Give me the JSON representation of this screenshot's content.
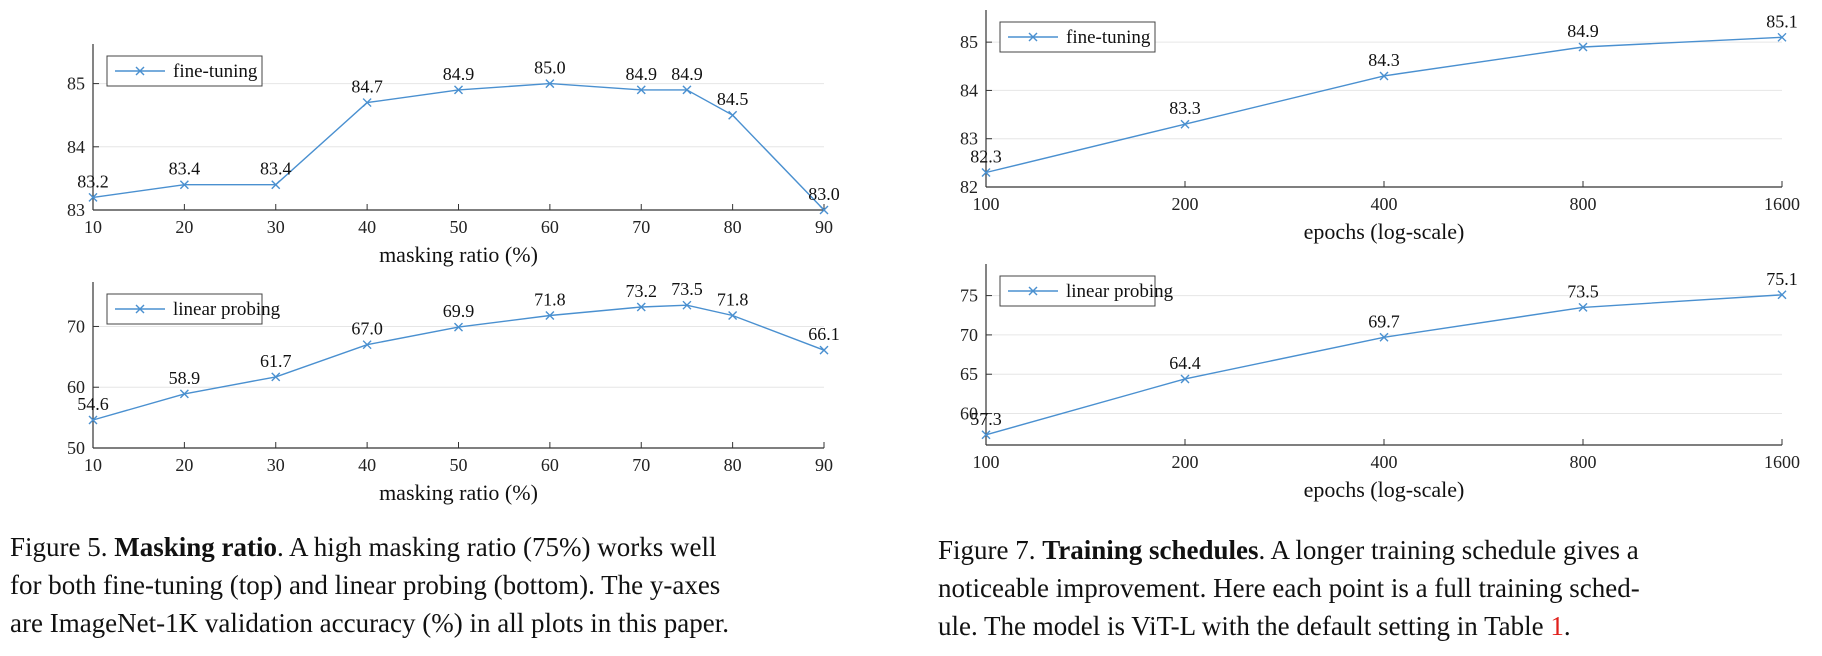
{
  "chart_data": [
    {
      "id": "fig5_top",
      "type": "line",
      "xscale": "linear",
      "x": [
        10,
        20,
        30,
        40,
        50,
        60,
        70,
        75,
        80,
        90
      ],
      "series": [
        {
          "name": "fine-tuning",
          "values": [
            83.2,
            83.4,
            83.4,
            84.7,
            84.9,
            85.0,
            84.9,
            84.9,
            84.5,
            83.0
          ]
        }
      ],
      "xticks": [
        10,
        20,
        30,
        40,
        50,
        60,
        70,
        80,
        90
      ],
      "yticks": [
        83,
        84,
        85
      ],
      "xlim": [
        10,
        90
      ],
      "ylim": [
        83,
        85.5
      ],
      "xlabel": "masking ratio (%)",
      "ylabel": "",
      "legend": "top-left",
      "grid": "horizontal"
    },
    {
      "id": "fig5_bottom",
      "type": "line",
      "xscale": "linear",
      "x": [
        10,
        20,
        30,
        40,
        50,
        60,
        70,
        75,
        80,
        90
      ],
      "series": [
        {
          "name": "linear probing",
          "values": [
            54.6,
            58.9,
            61.7,
            67.0,
            69.9,
            71.8,
            73.2,
            73.5,
            71.8,
            66.1
          ]
        }
      ],
      "xticks": [
        10,
        20,
        30,
        40,
        50,
        60,
        70,
        80,
        90
      ],
      "yticks": [
        50,
        60,
        70
      ],
      "xlim": [
        10,
        90
      ],
      "ylim": [
        50,
        76
      ],
      "xlabel": "masking ratio (%)",
      "ylabel": "",
      "legend": "top-left",
      "grid": "horizontal"
    },
    {
      "id": "fig7_top",
      "type": "line",
      "xscale": "log",
      "x": [
        100,
        200,
        400,
        800,
        1600
      ],
      "series": [
        {
          "name": "fine-tuning",
          "values": [
            82.3,
            83.3,
            84.3,
            84.9,
            85.1
          ]
        }
      ],
      "xticks": [
        100,
        200,
        400,
        800,
        1600
      ],
      "yticks": [
        82,
        83,
        84,
        85
      ],
      "xlim": [
        100,
        1600
      ],
      "ylim": [
        82,
        85.5
      ],
      "xlabel": "epochs (log-scale)",
      "ylabel": "",
      "legend": "top-left",
      "grid": "horizontal"
    },
    {
      "id": "fig7_bottom",
      "type": "line",
      "xscale": "log",
      "x": [
        100,
        200,
        400,
        800,
        1600
      ],
      "series": [
        {
          "name": "linear probing",
          "values": [
            57.3,
            64.4,
            69.7,
            73.5,
            75.1
          ]
        }
      ],
      "xticks": [
        100,
        200,
        400,
        800,
        1600
      ],
      "yticks": [
        60,
        65,
        70,
        75
      ],
      "xlim": [
        100,
        1600
      ],
      "ylim": [
        56,
        78
      ],
      "xlabel": "epochs (log-scale)",
      "ylabel": "",
      "legend": "top-left",
      "grid": "horizontal"
    }
  ],
  "colors": {
    "line": "#4a90d0",
    "axis": "#333333",
    "grid": "#e6e6e6",
    "reference": "#e0201b"
  },
  "captions": {
    "fig5": {
      "prefix": "Figure 5.",
      "title": "Masking ratio",
      "body_line1": ". A high masking ratio (75%) works well",
      "body_line2": "for both fine-tuning (top) and linear probing (bottom). The y-axes",
      "body_line3": "are ImageNet-1K validation accuracy (%) in all plots in this paper."
    },
    "fig7": {
      "prefix": "Figure 7.",
      "title": "Training schedules",
      "body_line1": ". A longer training schedule gives a",
      "body_line2": "noticeable improvement. Here each point is a full training sched-",
      "body_line3_pre": "ule. The model is ViT-L with the default setting in Table ",
      "body_line3_ref": "1",
      "body_line3_post": "."
    }
  }
}
